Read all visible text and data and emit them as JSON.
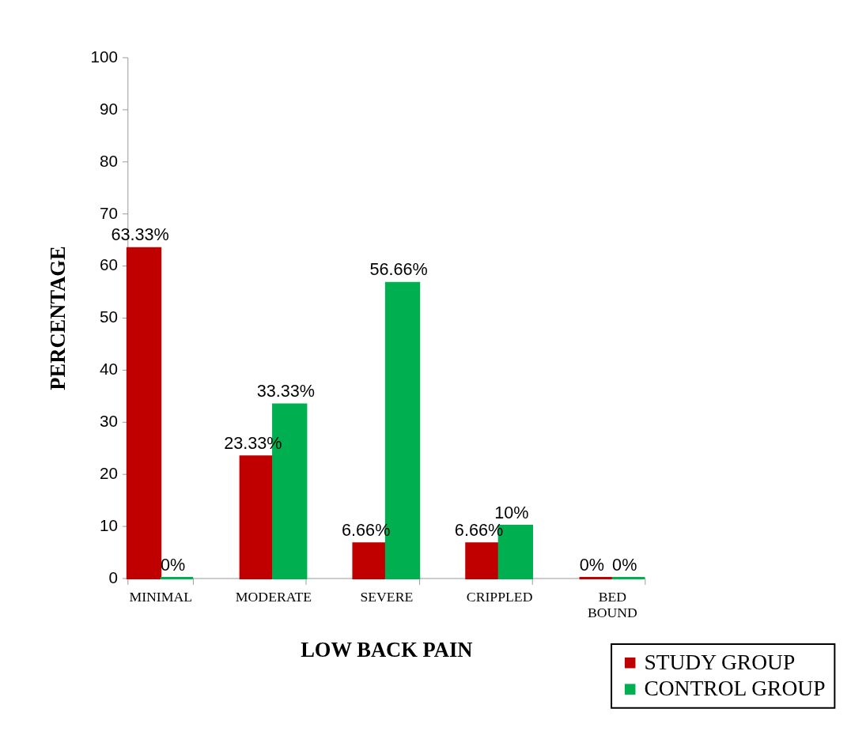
{
  "chart_data": {
    "type": "bar",
    "xlabel": "LOW BACK PAIN",
    "ylabel": "PERCENTAGE",
    "categories": [
      "MINIMAL",
      "MODERATE",
      "SEVERE",
      "CRIPPLED",
      "BED BOUND"
    ],
    "series": [
      {
        "name": "STUDY GROUP",
        "color": "#c00000",
        "values": [
          63.33,
          23.33,
          6.66,
          6.66,
          0
        ],
        "value_labels": [
          "63.33%",
          "23.33%",
          "6.66%",
          "6.66%",
          "0%"
        ]
      },
      {
        "name": "CONTROL GROUP",
        "color": "#00b050",
        "values": [
          0,
          33.33,
          56.66,
          10,
          0
        ],
        "value_labels": [
          "0%",
          "33.33%",
          "56.66%",
          "10%",
          "0%"
        ]
      }
    ],
    "ylim": [
      0,
      100
    ],
    "yticks": [
      0,
      10,
      20,
      30,
      40,
      50,
      60,
      70,
      80,
      90,
      100
    ],
    "grid": false,
    "legend": "bottom right"
  }
}
